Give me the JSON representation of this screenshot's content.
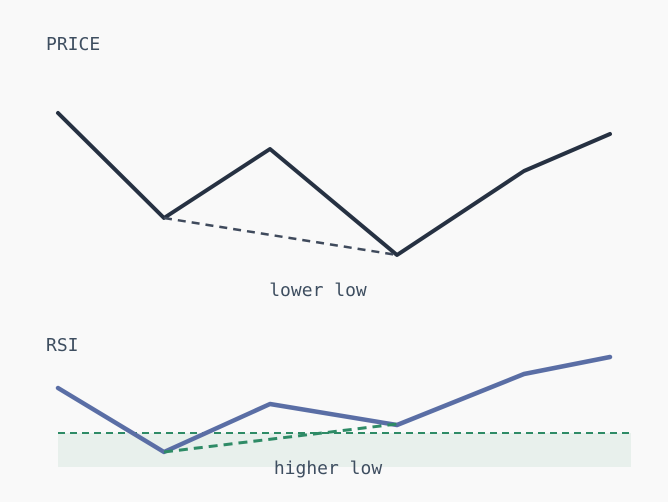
{
  "price_panel": {
    "title": "PRICE",
    "annotation": "lower low"
  },
  "rsi_panel": {
    "title": "RSI",
    "annotation": "higher low"
  }
}
